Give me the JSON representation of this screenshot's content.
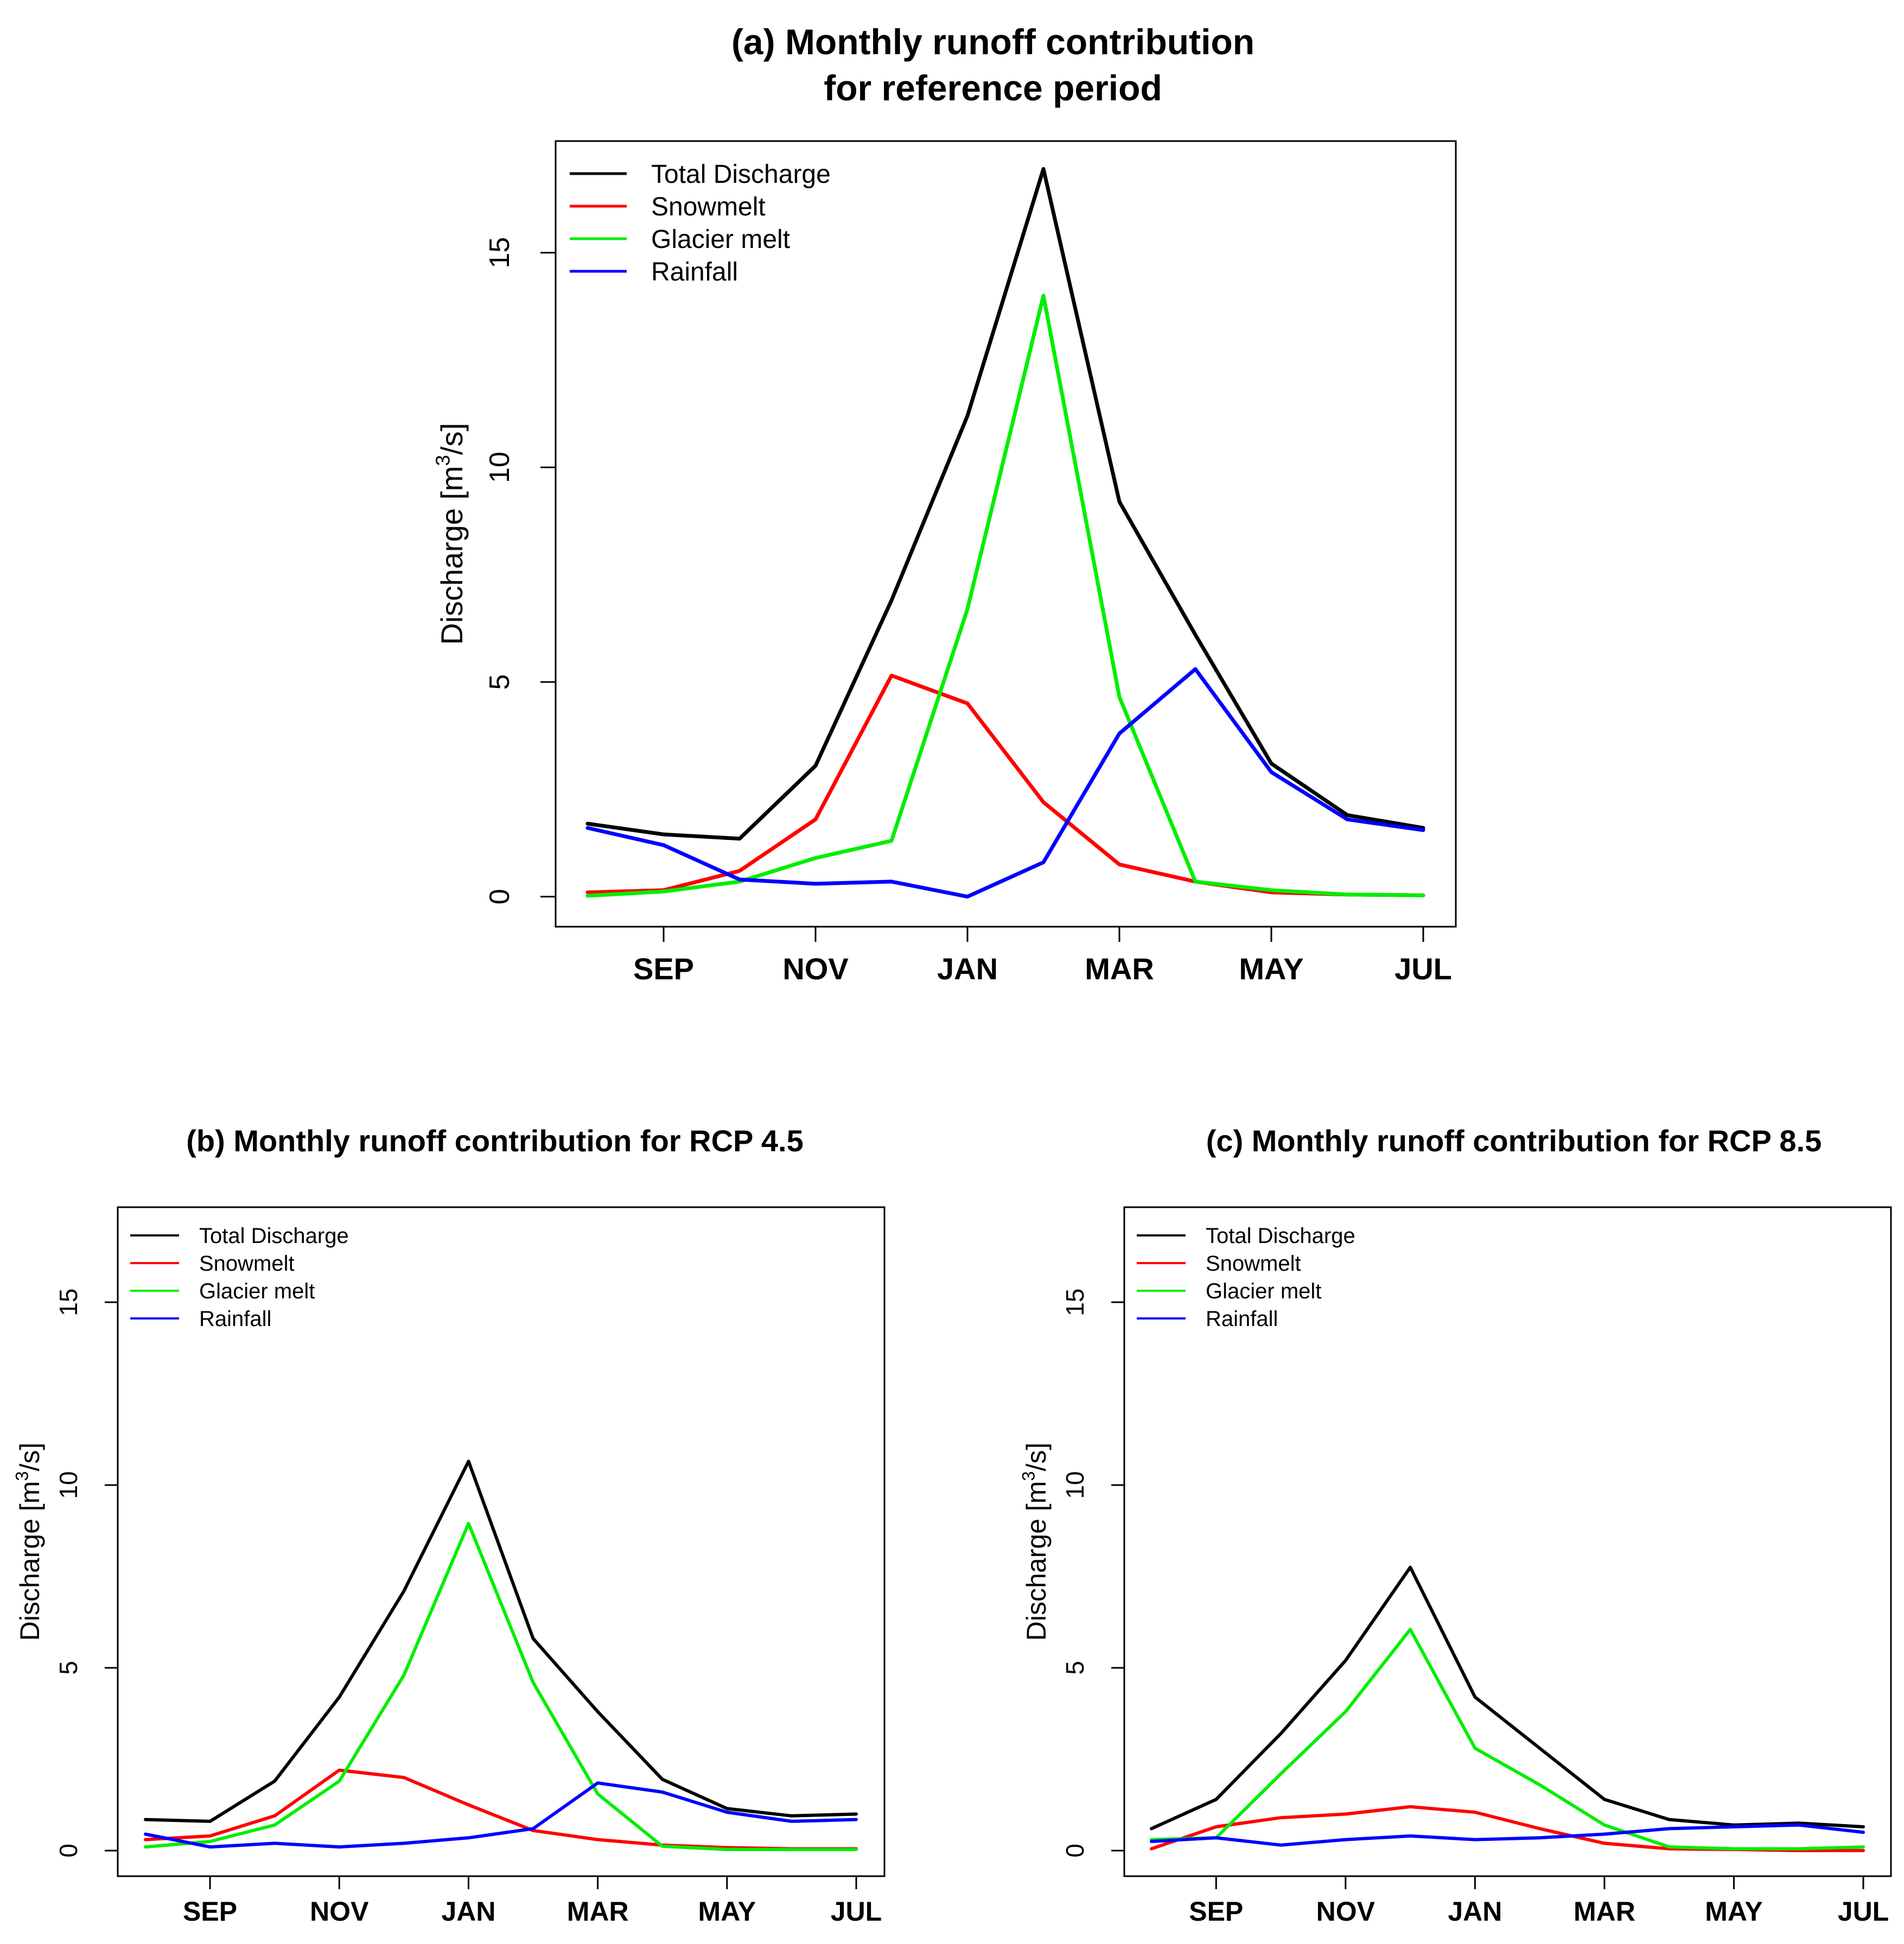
{
  "chart_data": [
    {
      "id": "a",
      "type": "line",
      "title_lines": [
        "(a) Monthly runoff contribution",
        "for reference period"
      ],
      "ylabel": "Discharge [m",
      "ylabel_sup": "3",
      "ylabel_end": "/s]",
      "ylim": [
        -0.7,
        17.6
      ],
      "yticks": [
        "0",
        "5",
        "10",
        "15"
      ],
      "ytick_values": [
        0,
        5,
        10,
        15
      ],
      "xtick_labels": [
        "SEP",
        "NOV",
        "JAN",
        "MAR",
        "MAY",
        "JUL"
      ],
      "xtick_index": [
        1,
        3,
        5,
        7,
        9,
        11
      ],
      "x": [
        0,
        1,
        2,
        3,
        4,
        5,
        6,
        7,
        8,
        9,
        10,
        11
      ],
      "legend_position": "top-left",
      "series": [
        {
          "name": "Total Discharge",
          "color": "#000000",
          "values": [
            1.7,
            1.45,
            1.35,
            3.05,
            6.9,
            11.2,
            16.95,
            9.2,
            6.1,
            3.1,
            1.9,
            1.6
          ]
        },
        {
          "name": "Snowmelt",
          "color": "#ff0000",
          "values": [
            0.1,
            0.15,
            0.6,
            1.8,
            5.15,
            4.5,
            2.2,
            0.75,
            0.35,
            0.1,
            0.05,
            0.03
          ]
        },
        {
          "name": "Glacier melt",
          "color": "#00ee00",
          "values": [
            0.02,
            0.12,
            0.35,
            0.9,
            1.3,
            6.7,
            14.0,
            4.65,
            0.35,
            0.15,
            0.05,
            0.03
          ]
        },
        {
          "name": "Rainfall",
          "color": "#0000ff",
          "values": [
            1.6,
            1.2,
            0.4,
            0.3,
            0.35,
            0.0,
            0.8,
            3.8,
            5.3,
            2.9,
            1.8,
            1.55
          ]
        }
      ]
    },
    {
      "id": "b",
      "type": "line",
      "title_lines": [
        "(b) Monthly runoff contribution for RCP 4.5"
      ],
      "ylabel": "Discharge [m",
      "ylabel_sup": "3",
      "ylabel_end": "/s]",
      "ylim": [
        -0.7,
        17.6
      ],
      "yticks": [
        "0",
        "5",
        "10",
        "15"
      ],
      "ytick_values": [
        0,
        5,
        10,
        15
      ],
      "xtick_labels": [
        "SEP",
        "NOV",
        "JAN",
        "MAR",
        "MAY",
        "JUL"
      ],
      "xtick_index": [
        1,
        3,
        5,
        7,
        9,
        11
      ],
      "x": [
        0,
        1,
        2,
        3,
        4,
        5,
        6,
        7,
        8,
        9,
        10,
        11
      ],
      "legend_position": "top-left",
      "series": [
        {
          "name": "Total Discharge",
          "color": "#000000",
          "values": [
            0.85,
            0.8,
            1.9,
            4.2,
            7.1,
            10.65,
            5.8,
            3.8,
            1.95,
            1.15,
            0.95,
            1.0
          ]
        },
        {
          "name": "Snowmelt",
          "color": "#ff0000",
          "values": [
            0.3,
            0.4,
            0.95,
            2.2,
            2.0,
            1.25,
            0.55,
            0.3,
            0.15,
            0.08,
            0.05,
            0.05
          ]
        },
        {
          "name": "Glacier melt",
          "color": "#00ee00",
          "values": [
            0.1,
            0.25,
            0.7,
            1.9,
            4.8,
            8.95,
            4.6,
            1.55,
            0.12,
            0.03,
            0.03,
            0.03
          ]
        },
        {
          "name": "Rainfall",
          "color": "#0000ff",
          "values": [
            0.45,
            0.1,
            0.2,
            0.1,
            0.2,
            0.35,
            0.6,
            1.85,
            1.6,
            1.05,
            0.8,
            0.85
          ]
        }
      ]
    },
    {
      "id": "c",
      "type": "line",
      "title_lines": [
        "(c) Monthly runoff contribution for RCP 8.5"
      ],
      "ylabel": "Discharge [m",
      "ylabel_sup": "3",
      "ylabel_end": "/s]",
      "ylim": [
        -0.7,
        17.6
      ],
      "yticks": [
        "0",
        "5",
        "10",
        "15"
      ],
      "ytick_values": [
        0,
        5,
        10,
        15
      ],
      "xtick_labels": [
        "SEP",
        "NOV",
        "JAN",
        "MAR",
        "MAY",
        "JUL"
      ],
      "xtick_index": [
        1,
        3,
        5,
        7,
        9,
        11
      ],
      "x": [
        0,
        1,
        2,
        3,
        4,
        5,
        6,
        7,
        8,
        9,
        10,
        11
      ],
      "legend_position": "top-left",
      "series": [
        {
          "name": "Total Discharge",
          "color": "#000000",
          "values": [
            0.6,
            1.4,
            3.2,
            5.2,
            7.75,
            4.2,
            2.8,
            1.4,
            0.85,
            0.7,
            0.75,
            0.65
          ]
        },
        {
          "name": "Snowmelt",
          "color": "#ff0000",
          "values": [
            0.05,
            0.65,
            0.9,
            1.0,
            1.2,
            1.05,
            0.6,
            0.2,
            0.05,
            0.03,
            0.0,
            0.0
          ]
        },
        {
          "name": "Glacier melt",
          "color": "#00ee00",
          "values": [
            0.3,
            0.35,
            2.1,
            3.8,
            6.05,
            2.8,
            1.8,
            0.7,
            0.1,
            0.05,
            0.05,
            0.1
          ]
        },
        {
          "name": "Rainfall",
          "color": "#0000ff",
          "values": [
            0.25,
            0.35,
            0.15,
            0.3,
            0.4,
            0.3,
            0.35,
            0.45,
            0.6,
            0.65,
            0.7,
            0.5
          ]
        }
      ]
    }
  ]
}
